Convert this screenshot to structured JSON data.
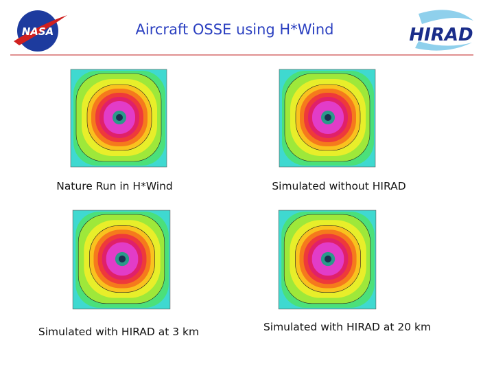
{
  "header": {
    "title": "Aircraft OSSE using H*Wind",
    "left_logo": "NASA",
    "right_logo": "HIRAD"
  },
  "panels": [
    {
      "caption": "Nature Run in H*Wind"
    },
    {
      "caption": "Simulated without HIRAD"
    },
    {
      "caption": "Simulated with HIRAD at 3 km"
    },
    {
      "caption": "Simulated with HIRAD at 20 km"
    }
  ]
}
